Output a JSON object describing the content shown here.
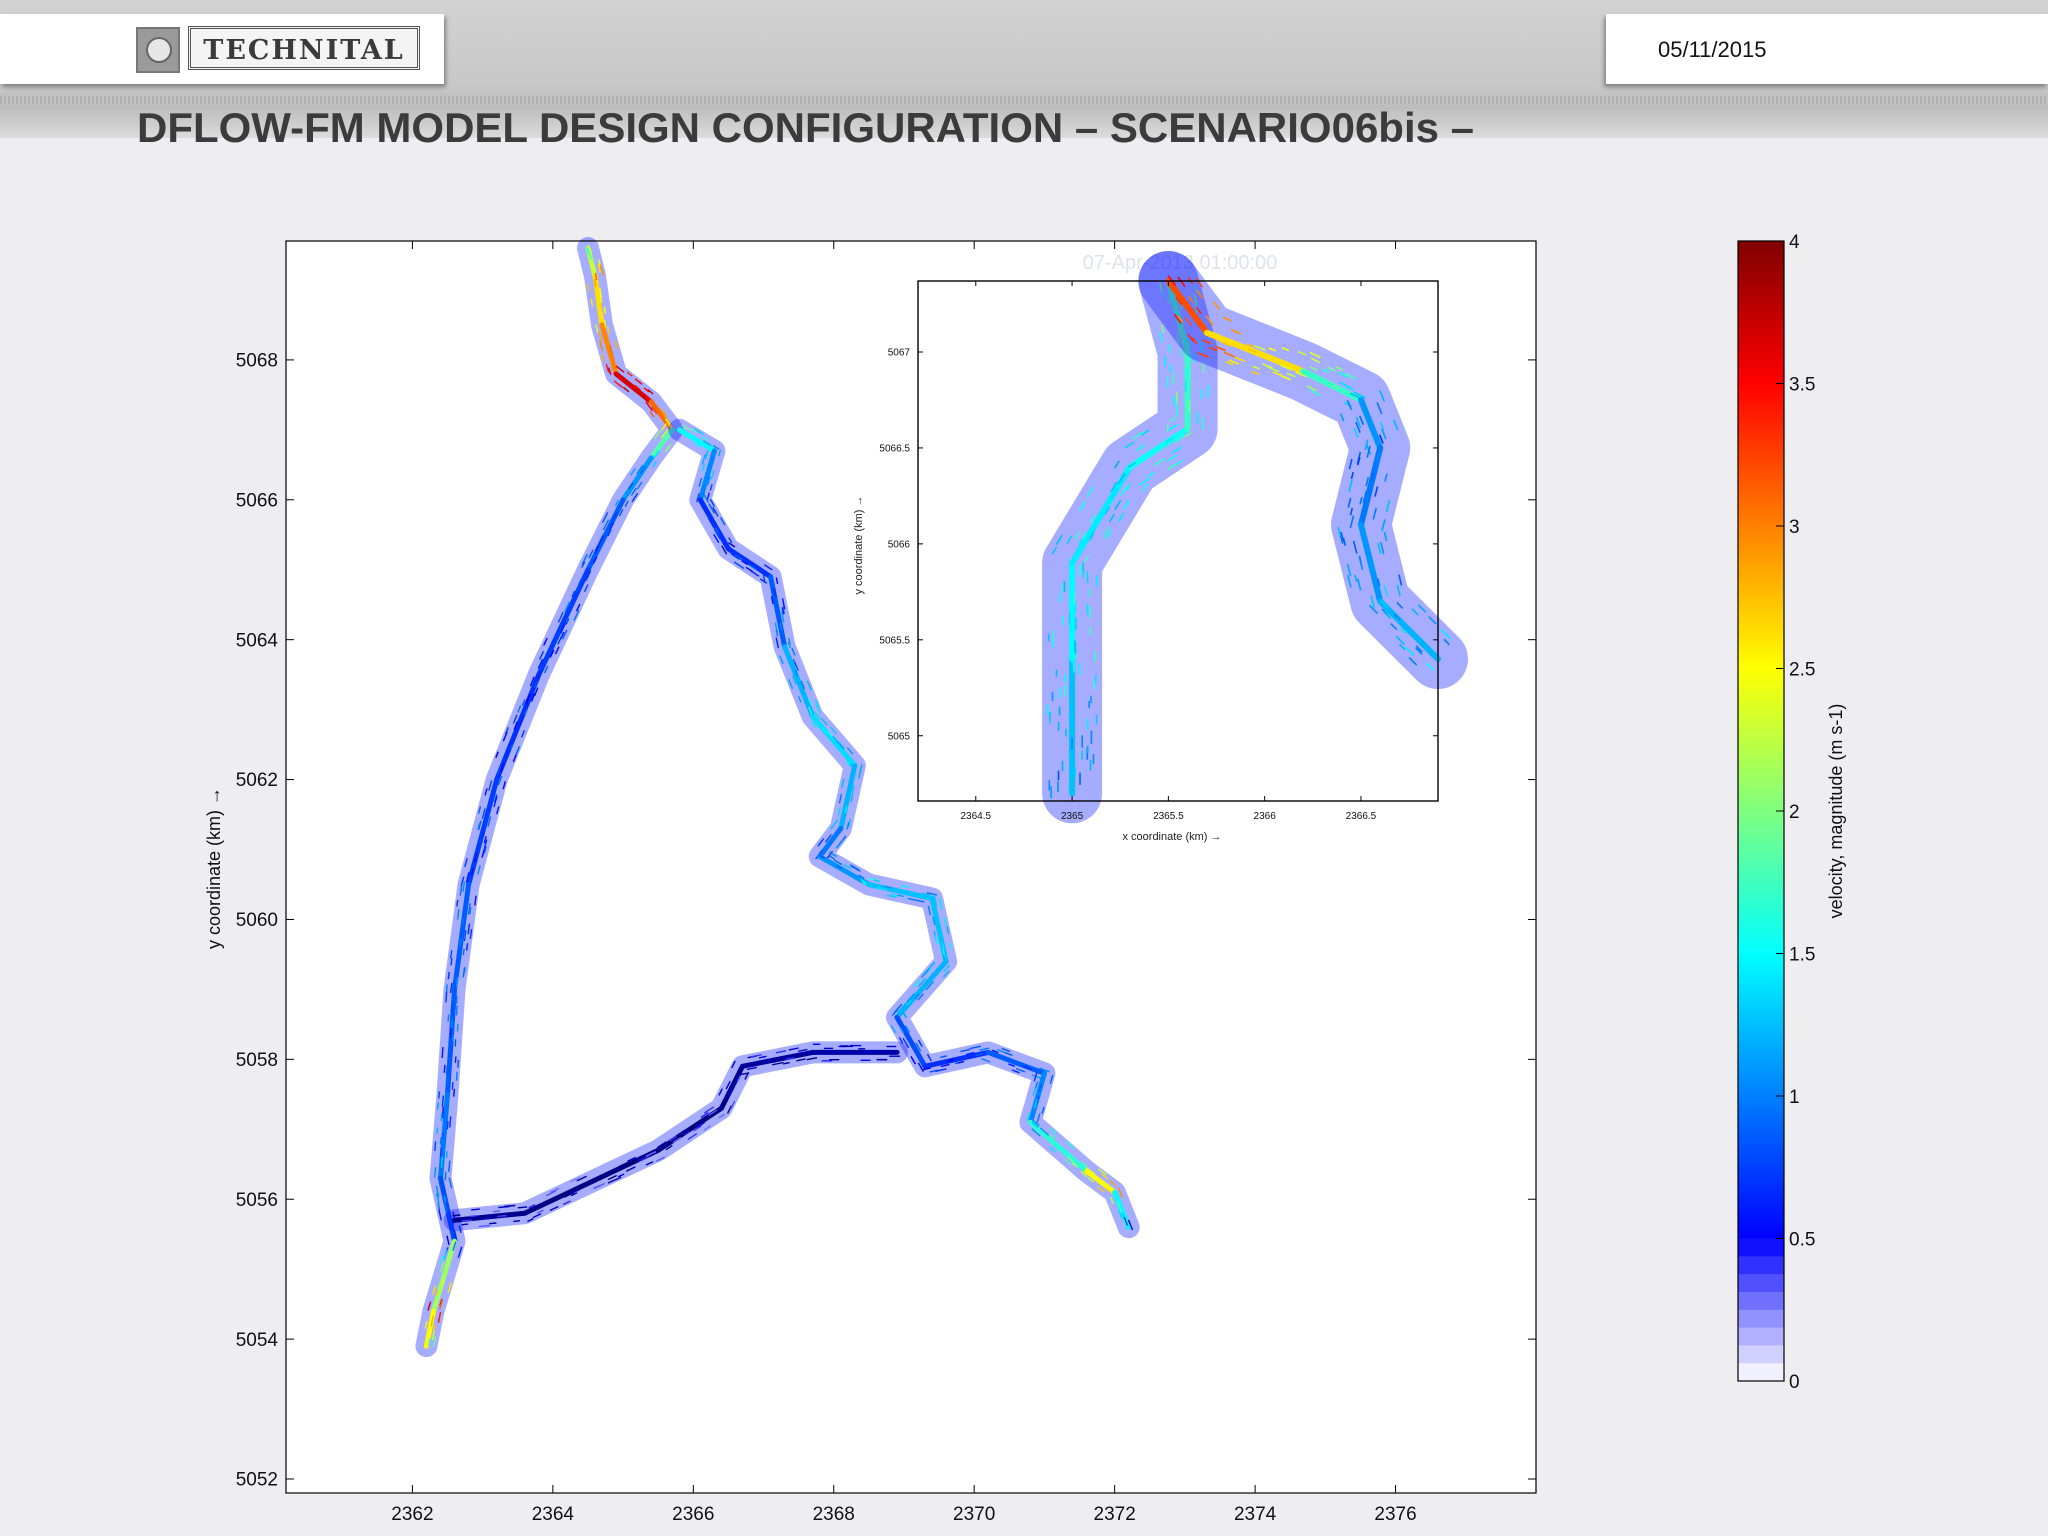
{
  "header": {
    "logo_text": "TECHNITAL",
    "date": "05/11/2015",
    "title": "DFLOW-FM MODEL DESIGN CONFIGURATION – SCENARIO06bis –"
  },
  "chart_data": [
    {
      "type": "quiver",
      "title": "",
      "xlabel": "x coordinate (km) →",
      "ylabel": "y coordinate (km) →",
      "xlim": [
        2360.2,
        2378.0
      ],
      "ylim": [
        5051.8,
        5069.7
      ],
      "xticks": [
        2362,
        2364,
        2366,
        2368,
        2370,
        2372,
        2374,
        2376
      ],
      "yticks": [
        5052,
        5054,
        5056,
        5058,
        5060,
        5062,
        5064,
        5066,
        5068
      ],
      "series": [
        {
          "name": "",
          "points": [
            {
              "x": 2364.5,
              "y": 5069.6,
              "v": 2.0
            },
            {
              "x": 2364.6,
              "y": 5069.2,
              "v": 3.0
            },
            {
              "x": 2364.7,
              "y": 5068.5,
              "v": 2.6
            },
            {
              "x": 2364.9,
              "y": 5067.8,
              "v": 3.6
            },
            {
              "x": 2365.4,
              "y": 5067.4,
              "v": 3.8
            },
            {
              "x": 2365.7,
              "y": 5067.0,
              "v": 2.6
            },
            {
              "x": 2365.4,
              "y": 5066.6,
              "v": 1.6
            },
            {
              "x": 2365.0,
              "y": 5066.0,
              "v": 1.3
            },
            {
              "x": 2364.5,
              "y": 5065.0,
              "v": 1.2
            },
            {
              "x": 2363.8,
              "y": 5063.5,
              "v": 1.1
            },
            {
              "x": 2363.2,
              "y": 5062.0,
              "v": 1.1
            },
            {
              "x": 2362.8,
              "y": 5060.5,
              "v": 1.2
            },
            {
              "x": 2362.6,
              "y": 5059.0,
              "v": 1.3
            },
            {
              "x": 2362.5,
              "y": 5057.5,
              "v": 1.2
            },
            {
              "x": 2362.4,
              "y": 5056.3,
              "v": 1.5
            },
            {
              "x": 2362.6,
              "y": 5055.4,
              "v": 0.9
            },
            {
              "x": 2362.3,
              "y": 5054.4,
              "v": 3.8
            },
            {
              "x": 2362.2,
              "y": 5053.9,
              "v": 1.6
            }
          ]
        },
        {
          "name": "",
          "points": [
            {
              "x": 2365.8,
              "y": 5067.0,
              "v": 2.0
            },
            {
              "x": 2366.3,
              "y": 5066.7,
              "v": 1.6
            },
            {
              "x": 2366.1,
              "y": 5066.0,
              "v": 1.2
            },
            {
              "x": 2366.5,
              "y": 5065.3,
              "v": 1.0
            },
            {
              "x": 2367.1,
              "y": 5064.9,
              "v": 1.2
            },
            {
              "x": 2367.3,
              "y": 5063.9,
              "v": 1.3
            },
            {
              "x": 2367.7,
              "y": 5062.9,
              "v": 1.8
            },
            {
              "x": 2368.3,
              "y": 5062.2,
              "v": 1.6
            },
            {
              "x": 2368.1,
              "y": 5061.3,
              "v": 1.5
            },
            {
              "x": 2367.8,
              "y": 5060.9,
              "v": 1.2
            },
            {
              "x": 2368.5,
              "y": 5060.5,
              "v": 1.7
            },
            {
              "x": 2369.4,
              "y": 5060.3,
              "v": 1.5
            },
            {
              "x": 2369.6,
              "y": 5059.4,
              "v": 1.7
            },
            {
              "x": 2368.9,
              "y": 5058.6,
              "v": 1.4
            },
            {
              "x": 2369.3,
              "y": 5057.9,
              "v": 1.0
            },
            {
              "x": 2370.2,
              "y": 5058.1,
              "v": 1.2
            },
            {
              "x": 2371.0,
              "y": 5057.8,
              "v": 1.3
            },
            {
              "x": 2370.8,
              "y": 5057.1,
              "v": 1.5
            },
            {
              "x": 2371.6,
              "y": 5056.4,
              "v": 2.4
            },
            {
              "x": 2372.0,
              "y": 5056.1,
              "v": 3.0
            },
            {
              "x": 2372.2,
              "y": 5055.6,
              "v": 0.6
            }
          ]
        },
        {
          "name": "",
          "points": [
            {
              "x": 2362.6,
              "y": 5055.7,
              "v": 0.6
            },
            {
              "x": 2363.6,
              "y": 5055.8,
              "v": 0.5
            },
            {
              "x": 2365.5,
              "y": 5056.7,
              "v": 0.5
            },
            {
              "x": 2366.4,
              "y": 5057.3,
              "v": 0.5
            },
            {
              "x": 2366.7,
              "y": 5057.9,
              "v": 0.6
            },
            {
              "x": 2367.7,
              "y": 5058.1,
              "v": 0.6
            },
            {
              "x": 2368.9,
              "y": 5058.1,
              "v": 0.7
            }
          ]
        }
      ]
    },
    {
      "type": "quiver",
      "title": "07-Apr-2013 01:00:00",
      "xlabel": "x coordinate (km) →",
      "ylabel": "y coordinate (km) →",
      "xlim": [
        2364.2,
        2366.9
      ],
      "ylim": [
        5064.66,
        5067.37
      ],
      "xticks": [
        2364.5,
        2365,
        2365.5,
        2366,
        2366.5
      ],
      "xtick_labels": [
        "2364.5",
        "2365",
        "2365.5",
        "2366",
        "2366.5"
      ],
      "yticks": [
        5065,
        5065.5,
        5066,
        5066.5,
        5067
      ],
      "ytick_labels": [
        "5065",
        "5065.5",
        "5066",
        "5066.5",
        "5067"
      ],
      "series": [
        {
          "name": "",
          "points": [
            {
              "x": 2365.0,
              "y": 5064.7,
              "v": 1.4
            },
            {
              "x": 2365.0,
              "y": 5065.4,
              "v": 1.8
            },
            {
              "x": 2365.0,
              "y": 5065.9,
              "v": 1.8
            },
            {
              "x": 2365.3,
              "y": 5066.4,
              "v": 1.7
            },
            {
              "x": 2365.6,
              "y": 5066.6,
              "v": 2.0
            },
            {
              "x": 2365.6,
              "y": 5067.0,
              "v": 2.0
            },
            {
              "x": 2365.5,
              "y": 5067.37,
              "v": 2.2
            }
          ]
        },
        {
          "name": "",
          "points": [
            {
              "x": 2365.5,
              "y": 5067.37,
              "v": 3.4
            },
            {
              "x": 2365.7,
              "y": 5067.1,
              "v": 3.2
            },
            {
              "x": 2366.2,
              "y": 5066.9,
              "v": 2.4
            },
            {
              "x": 2366.5,
              "y": 5066.75,
              "v": 1.6
            },
            {
              "x": 2366.6,
              "y": 5066.5,
              "v": 1.3
            },
            {
              "x": 2366.5,
              "y": 5066.1,
              "v": 1.4
            },
            {
              "x": 2366.6,
              "y": 5065.7,
              "v": 1.5
            },
            {
              "x": 2366.9,
              "y": 5065.4,
              "v": 1.6
            }
          ]
        }
      ]
    },
    {
      "type": "colorbar",
      "label": "velocity, magnitude (m s-1)",
      "range": [
        0,
        4
      ],
      "ticks": [
        0,
        0.5,
        1,
        1.5,
        2,
        2.5,
        3,
        3.5,
        4
      ],
      "tick_labels": [
        "0",
        "0.5",
        "1",
        "1.5",
        "2",
        "2.5",
        "3",
        "3.5",
        "4"
      ]
    }
  ]
}
